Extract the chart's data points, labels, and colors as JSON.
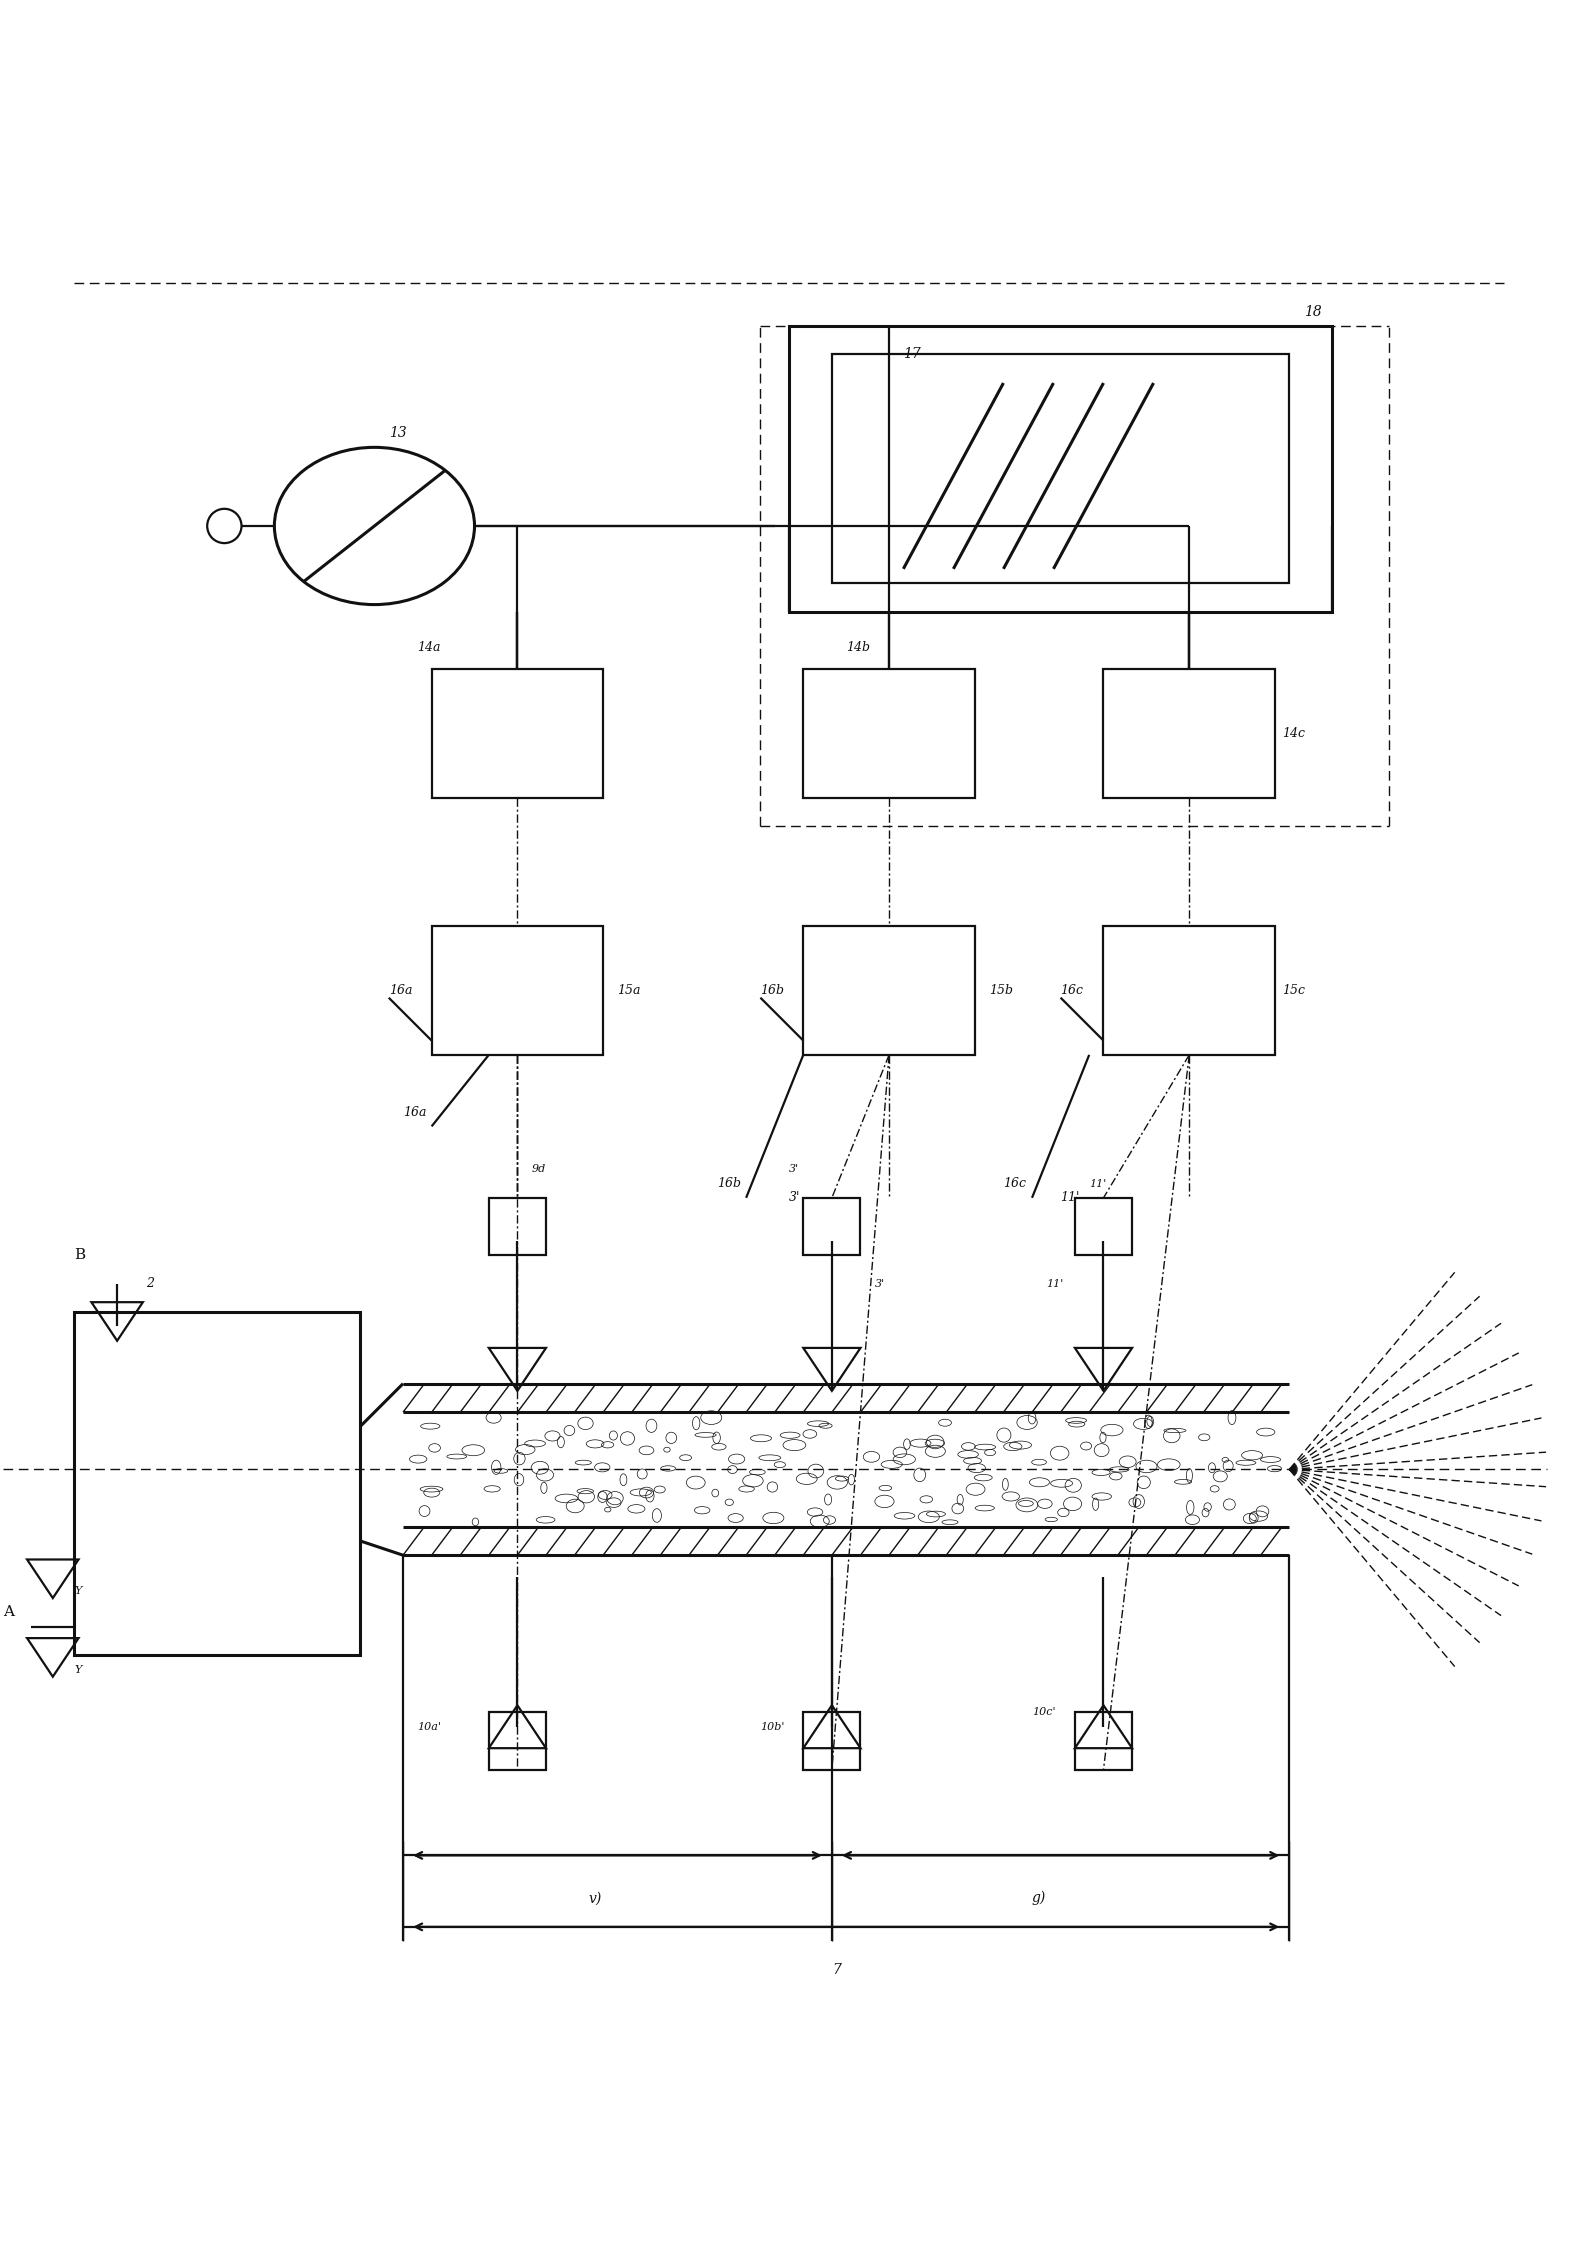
{
  "figsize": [
    15.78,
    22.67
  ],
  "dpi": 100,
  "background": "#ffffff",
  "lc": "#111111",
  "lw": 1.6,
  "lw_thin": 1.0,
  "lw_thick": 2.2,
  "xlim": [
    0,
    110
  ],
  "ylim": [
    0,
    155
  ]
}
